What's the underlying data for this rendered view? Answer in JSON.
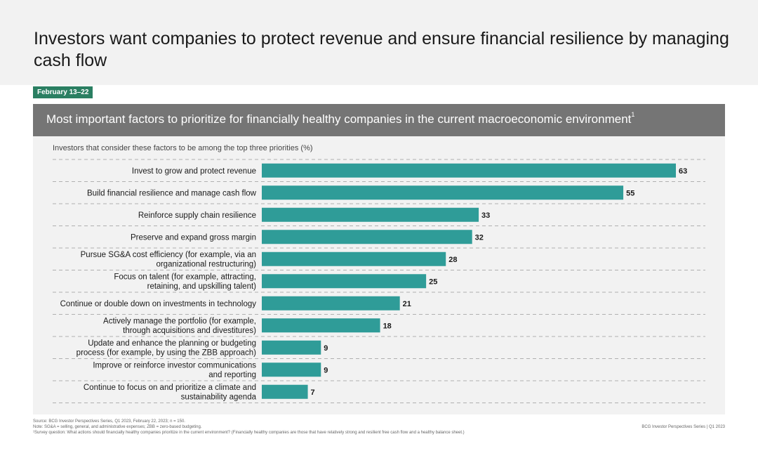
{
  "headline": "Investors want companies to protect revenue and ensure financial resilience by managing cash flow",
  "date_badge": "February 13–22",
  "panel_title": "Most important factors to prioritize for financially healthy companies in the current macroeconomic environment",
  "panel_title_sup": "1",
  "footer": {
    "source": "Source: BCG Investor Perspectives Series, Q1 2023, February 22, 2023; n = 150.",
    "note": "Note: SG&A = selling, general, and administrative expenses; ZBB = zero-based budgeting.",
    "survey": "¹Survey question: What actions should financially healthy companies prioritize in the current environment? (Financially healthy companies are those that have relatively strong and resilient free cash flow and a healthy balance sheet.)",
    "right": "BCG Investor Perspectives Series | Q1 2023"
  },
  "chart_data": {
    "type": "bar",
    "orientation": "horizontal",
    "title": "",
    "subtitle": "Investors that consider these factors to be among the top three priorities (%)",
    "bar_color": "#2f9c98",
    "xlim": [
      0,
      63
    ],
    "grid": false,
    "categories": [
      [
        "Invest to grow and protect revenue"
      ],
      [
        "Build financial resilience and manage cash flow"
      ],
      [
        "Reinforce supply chain resilience"
      ],
      [
        "Preserve and expand gross margin"
      ],
      [
        "Pursue SG&A cost efficiency (for example, via an",
        "organizational restructuring)"
      ],
      [
        "Focus on talent (for example, attracting,",
        "retaining, and upskilling talent)"
      ],
      [
        "Continue or double down on investments in technology"
      ],
      [
        "Actively manage the portfolio (for example,",
        "through acquisitions and divestitures)"
      ],
      [
        "Update and enhance the planning or budgeting",
        "process (for example, by using the ZBB approach)"
      ],
      [
        "Improve or reinforce investor communications",
        "and reporting"
      ],
      [
        "Continue to focus on and prioritize a climate and",
        "sustainability agenda"
      ]
    ],
    "values": [
      63,
      55,
      33,
      32,
      28,
      25,
      21,
      18,
      9,
      9,
      7
    ]
  }
}
